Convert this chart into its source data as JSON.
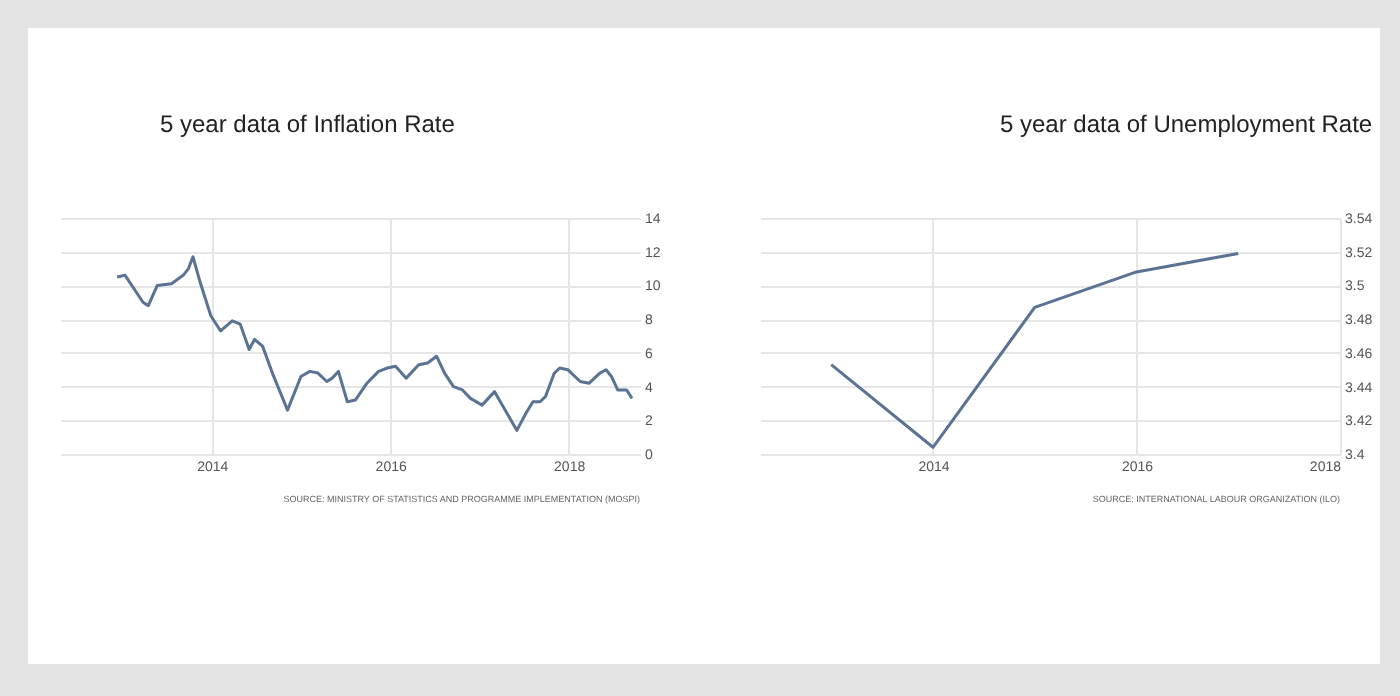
{
  "chart_data": [
    {
      "type": "line",
      "title": "5 year data of Inflation Rate",
      "x": [
        2012.94,
        2013.03,
        2013.23,
        2013.29,
        2013.39,
        2013.55,
        2013.68,
        2013.74,
        2013.79,
        2013.87,
        2013.99,
        2014.1,
        2014.23,
        2014.32,
        2014.42,
        2014.48,
        2014.57,
        2014.68,
        2014.85,
        2015.0,
        2015.1,
        2015.19,
        2015.29,
        2015.35,
        2015.42,
        2015.52,
        2015.61,
        2015.74,
        2015.87,
        2015.97,
        2016.06,
        2016.18,
        2016.32,
        2016.42,
        2016.52,
        2016.61,
        2016.71,
        2016.81,
        2016.9,
        2017.03,
        2017.17,
        2017.29,
        2017.42,
        2017.52,
        2017.6,
        2017.68,
        2017.74,
        2017.84,
        2017.9,
        2017.99,
        2018.13,
        2018.23,
        2018.35,
        2018.42,
        2018.48,
        2018.55,
        2018.65,
        2018.71
      ],
      "series": [
        {
          "color": "#5a7393",
          "values": [
            10.5,
            10.6,
            9.0,
            8.8,
            10.0,
            10.1,
            10.6,
            11.0,
            11.7,
            10.2,
            8.2,
            7.3,
            7.9,
            7.7,
            6.2,
            6.8,
            6.4,
            4.8,
            2.6,
            4.6,
            4.9,
            4.8,
            4.3,
            4.5,
            4.9,
            3.1,
            3.2,
            4.2,
            4.9,
            5.1,
            5.2,
            4.5,
            5.3,
            5.4,
            5.8,
            4.8,
            4.0,
            3.8,
            3.3,
            2.9,
            3.7,
            2.6,
            1.4,
            2.4,
            3.1,
            3.1,
            3.4,
            4.8,
            5.1,
            5.0,
            4.3,
            4.2,
            4.8,
            5.0,
            4.6,
            3.8,
            3.8,
            3.3
          ]
        }
      ],
      "xlim": [
        2012.3,
        2018.8
      ],
      "xticks": [
        2014,
        2016,
        2018
      ],
      "ylim": [
        0,
        14
      ],
      "yticks": [
        0,
        2,
        4,
        6,
        8,
        10,
        12,
        14
      ],
      "grid": true,
      "marker": "none",
      "line_style": "solid",
      "annotations": [
        "SOURCE: MINISTRY OF STATISTICS AND PROGRAMME IMPLEMENTATION (MOSPI)"
      ]
    },
    {
      "type": "line",
      "title": "5 year data of Unemployment Rate",
      "x": [
        2013,
        2014,
        2015,
        2016,
        2017
      ],
      "series": [
        {
          "color": "#5a7393",
          "values": [
            3.453,
            3.404,
            3.487,
            3.508,
            3.519
          ]
        }
      ],
      "xlim": [
        2012.3,
        2018
      ],
      "xticks": [
        2014,
        2016,
        2018
      ],
      "ylim": [
        3.4,
        3.54
      ],
      "yticks": [
        3.4,
        3.42,
        3.44,
        3.46,
        3.48,
        3.5,
        3.52,
        3.54
      ],
      "grid": true,
      "marker": "none",
      "line_style": "solid",
      "annotations": [
        "SOURCE: INTERNATIONAL LABOUR ORGANIZATION (ILO)"
      ]
    }
  ]
}
